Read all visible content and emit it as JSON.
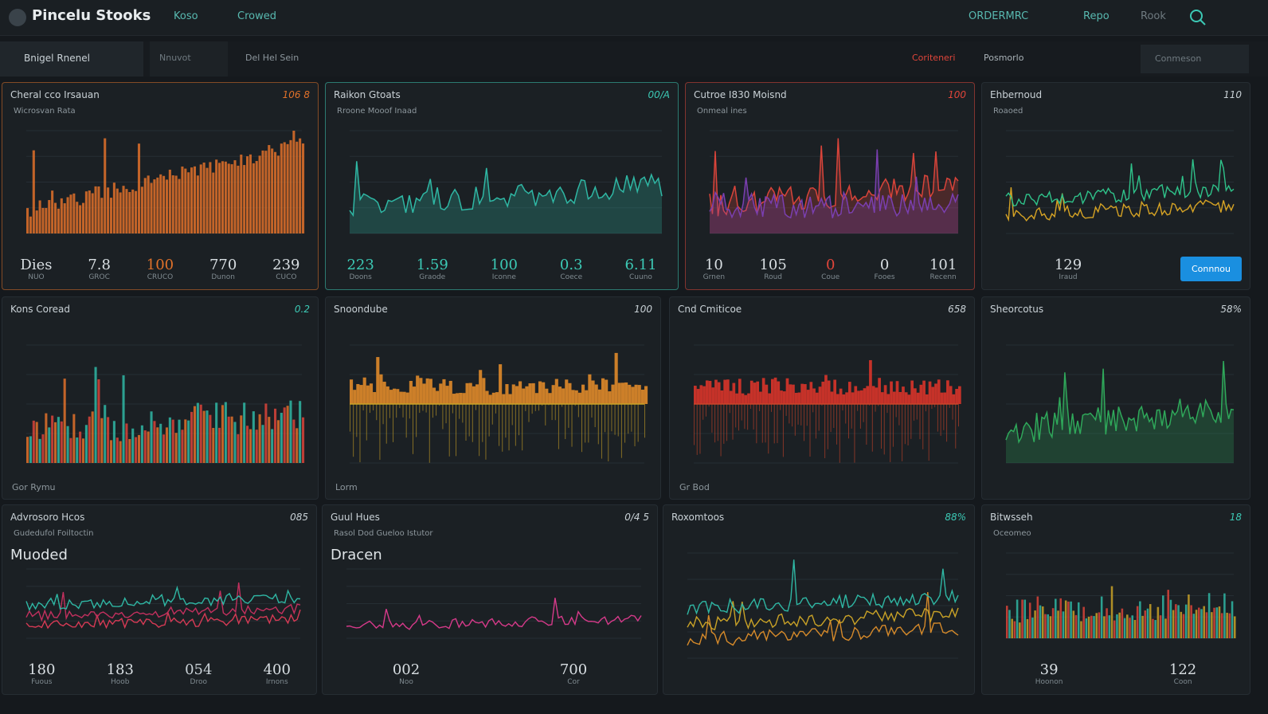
{
  "header": {
    "brand": "Pincelu Stooks",
    "nav": [
      "Koso",
      "Crowed"
    ],
    "right": [
      "ORDERMRC",
      "Repo",
      "Rook"
    ]
  },
  "toolbar": {
    "left": [
      "Bnigel Rnenel",
      "Nnuvot",
      "Del Hel Sein"
    ],
    "right": [
      "Coriteneri",
      "Posmorlo",
      "Conmeson"
    ]
  },
  "panels": [
    {
      "title": "Cheral cco Irsauan",
      "badge": "106 8",
      "subtitle": "Wicrosvan Rata",
      "accent": "#e0712a",
      "style": "bars",
      "colors": [
        "#e0712a"
      ],
      "stats": [
        {
          "value": "Dies",
          "label": "NUO"
        },
        {
          "value": "7.8",
          "label": "GROC"
        },
        {
          "value": "100",
          "label": "CRUCO"
        },
        {
          "value": "770",
          "label": "Dunon"
        },
        {
          "value": "239",
          "label": "CUCO"
        }
      ]
    },
    {
      "title": "Raikon Gtoats",
      "badge": "00/A",
      "subtitle": "Rroone Mooof Inaad",
      "accent": "#3cc9b5",
      "style": "area",
      "colors": [
        "#2fb7a4"
      ],
      "stats": [
        {
          "value": "223",
          "label": "Doons"
        },
        {
          "value": "1.59",
          "label": "Graode"
        },
        {
          "value": "100",
          "label": "Iconne"
        },
        {
          "value": "0.3",
          "label": "Coece"
        },
        {
          "value": "6.11",
          "label": "Cuuno"
        }
      ]
    },
    {
      "title": "Cutroe I830 Moisnd",
      "badge": "100",
      "subtitle": "Onmeal ines",
      "accent": "#e0453a",
      "style": "area",
      "colors": [
        "#d9443a",
        "#7a3fb0"
      ],
      "stats": [
        {
          "value": "10",
          "label": "Grnen"
        },
        {
          "value": "105",
          "label": "Roud"
        },
        {
          "value": "0",
          "label": "Coue"
        },
        {
          "value": "0",
          "label": "Fooes"
        },
        {
          "value": "101",
          "label": "Recenn"
        }
      ]
    },
    {
      "title": "Ehbernoud",
      "badge": "110",
      "subtitle": "Roaoed",
      "accent": "#c9d1d6",
      "style": "line",
      "colors": [
        "#d6a324",
        "#2fc28a"
      ],
      "stats": [
        {
          "value": "129",
          "label": "Iraud"
        }
      ],
      "button": "Connnou"
    },
    {
      "title": "Kons Coread",
      "badge": "0.2",
      "accent": "#3cc9b5",
      "style": "mixed",
      "colors": [
        "#e0712a",
        "#2fb7a4",
        "#d9443a"
      ],
      "footer": "Gor Rymu",
      "stats": []
    },
    {
      "title": "Snoondube",
      "badge": "100",
      "accent": "#c9d1d6",
      "style": "mirror",
      "colors": [
        "#e0892a",
        "#c9a227"
      ],
      "footer": "Lorm",
      "stats": []
    },
    {
      "title": "Cnd Cmiticoe",
      "badge": "658",
      "accent": "#c9d1d6",
      "style": "mirror",
      "colors": [
        "#d9342a",
        "#c9442a"
      ],
      "footer": "Gr Bod",
      "stats": []
    },
    {
      "title": "Sheorcotus",
      "badge": "58%",
      "accent": "#c9d1d6",
      "style": "area",
      "colors": [
        "#2fa85a"
      ],
      "stats": []
    },
    {
      "title": "Advrosoro Hcos",
      "badge": "085",
      "subtitle": "Gudedufol Foiltoctin",
      "big": "Muoded",
      "accent": "#c9d1d6",
      "style": "lines",
      "colors": [
        "#d63a55",
        "#c2305e",
        "#2fb7a4"
      ],
      "stats": [
        {
          "value": "180",
          "label": "Fuous"
        },
        {
          "value": "183",
          "label": "Hoob"
        },
        {
          "value": "054",
          "label": "Droo"
        },
        {
          "value": "400",
          "label": "Irnons"
        }
      ]
    },
    {
      "title": "Guul Hues",
      "badge": "0/4 5",
      "subtitle": "Rasol Dod Gueloo Istutor",
      "big": "Dracen",
      "accent": "#c9d1d6",
      "style": "lines",
      "colors": [
        "#d63a8a"
      ],
      "stats": [
        {
          "value": "002",
          "label": "Noo"
        },
        {
          "value": "700",
          "label": "Cor"
        }
      ]
    },
    {
      "title": "Roxomtoos",
      "badge": "88%",
      "accent": "#3cc9b5",
      "style": "lines",
      "colors": [
        "#d68a2a",
        "#c9a227",
        "#2fb7a4"
      ],
      "stats": []
    },
    {
      "title": "Bitwsseh",
      "badge": "18",
      "subtitle": "Oceomeo",
      "accent": "#3cc9b5",
      "style": "mixed",
      "colors": [
        "#d9443a",
        "#2fb7a4",
        "#c9a227"
      ],
      "stats": [
        {
          "value": "39",
          "label": "Hoonon"
        },
        {
          "value": "122",
          "label": "Coon"
        }
      ]
    }
  ]
}
